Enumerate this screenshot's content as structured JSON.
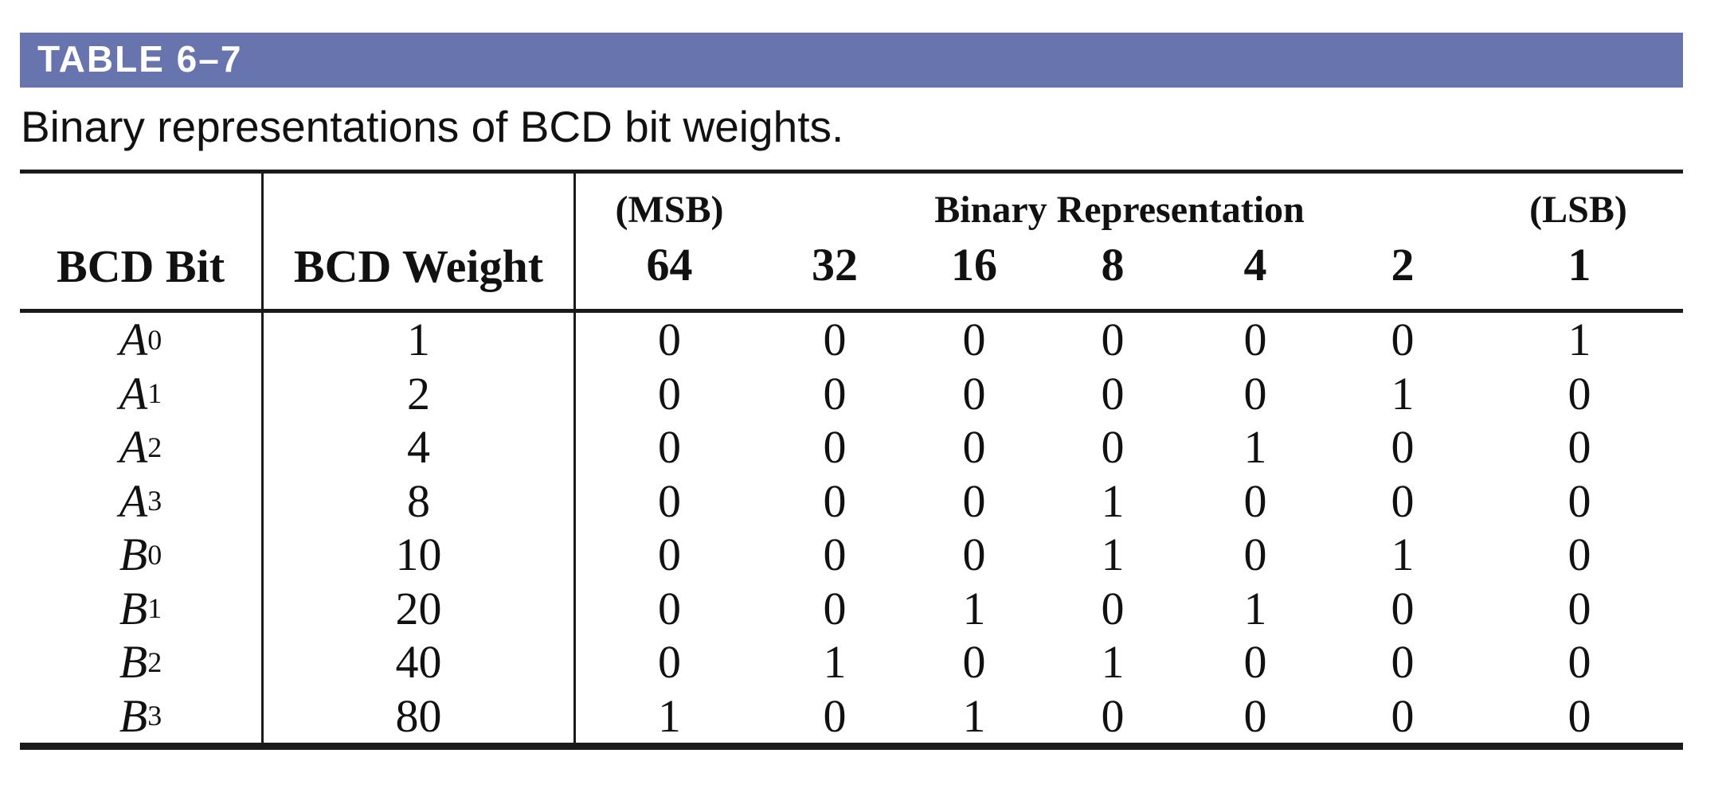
{
  "title_bar": {
    "label": "TABLE 6–7",
    "background": "#6874ad",
    "text_color": "#ffffff"
  },
  "caption": "Binary representations of BCD bit weights.",
  "table": {
    "header": {
      "bcd_bit": "BCD Bit",
      "bcd_weight": "BCD Weight",
      "msb": "(MSB)",
      "binary_rep": "Binary Representation",
      "lsb": "(LSB)",
      "weights": [
        "64",
        "32",
        "16",
        "8",
        "4",
        "2",
        "1"
      ]
    },
    "rows": [
      {
        "bit_letter": "A",
        "bit_sub": "0",
        "bcd_weight": "1",
        "bits": [
          "0",
          "0",
          "0",
          "0",
          "0",
          "0",
          "1"
        ]
      },
      {
        "bit_letter": "A",
        "bit_sub": "1",
        "bcd_weight": "2",
        "bits": [
          "0",
          "0",
          "0",
          "0",
          "0",
          "1",
          "0"
        ]
      },
      {
        "bit_letter": "A",
        "bit_sub": "2",
        "bcd_weight": "4",
        "bits": [
          "0",
          "0",
          "0",
          "0",
          "1",
          "0",
          "0"
        ]
      },
      {
        "bit_letter": "A",
        "bit_sub": "3",
        "bcd_weight": "8",
        "bits": [
          "0",
          "0",
          "0",
          "1",
          "0",
          "0",
          "0"
        ]
      },
      {
        "bit_letter": "B",
        "bit_sub": "0",
        "bcd_weight": "10",
        "bits": [
          "0",
          "0",
          "0",
          "1",
          "0",
          "1",
          "0"
        ]
      },
      {
        "bit_letter": "B",
        "bit_sub": "1",
        "bcd_weight": "20",
        "bits": [
          "0",
          "0",
          "1",
          "0",
          "1",
          "0",
          "0"
        ]
      },
      {
        "bit_letter": "B",
        "bit_sub": "2",
        "bcd_weight": "40",
        "bits": [
          "0",
          "1",
          "0",
          "1",
          "0",
          "0",
          "0"
        ]
      },
      {
        "bit_letter": "B",
        "bit_sub": "3",
        "bcd_weight": "80",
        "bits": [
          "1",
          "0",
          "1",
          "0",
          "0",
          "0",
          "0"
        ]
      }
    ]
  },
  "colors": {
    "rule": "#1a1a1a",
    "text": "#111111",
    "page_background": "#ffffff"
  }
}
